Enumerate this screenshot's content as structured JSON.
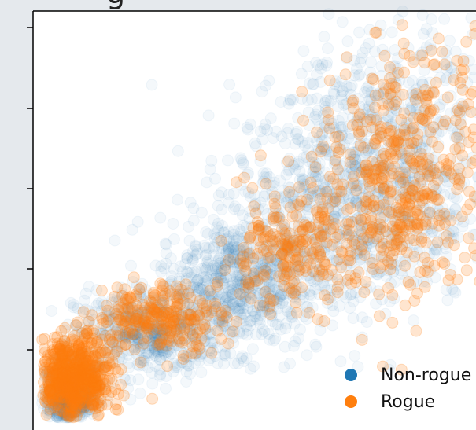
{
  "chart_data": {
    "type": "scatter",
    "title": "",
    "xlabel": "",
    "ylabel": "",
    "grid": false,
    "legend_placement": "bottom-right",
    "y_ticks_count": 5,
    "series": [
      {
        "name": "Non-rogue",
        "color": "#1f77b4",
        "alpha": 0.05,
        "density_clusters": [
          {
            "x": 0.08,
            "y": 0.08,
            "sx": 0.03,
            "sy": 0.04,
            "n": 600
          },
          {
            "x": 0.25,
            "y": 0.23,
            "sx": 0.08,
            "sy": 0.05,
            "n": 500
          },
          {
            "x": 0.45,
            "y": 0.35,
            "sx": 0.09,
            "sy": 0.08,
            "n": 700
          },
          {
            "x": 0.7,
            "y": 0.55,
            "sx": 0.13,
            "sy": 0.13,
            "n": 900
          },
          {
            "x": 0.8,
            "y": 0.75,
            "sx": 0.12,
            "sy": 0.12,
            "n": 350
          }
        ]
      },
      {
        "name": "Rogue",
        "color": "#ff7f0e",
        "alpha": 0.2,
        "density_clusters": [
          {
            "x": 0.09,
            "y": 0.12,
            "sx": 0.04,
            "sy": 0.05,
            "n": 700
          },
          {
            "x": 0.28,
            "y": 0.27,
            "sx": 0.07,
            "sy": 0.04,
            "n": 250
          },
          {
            "x": 0.55,
            "y": 0.42,
            "sx": 0.07,
            "sy": 0.06,
            "n": 200
          },
          {
            "x": 0.8,
            "y": 0.55,
            "sx": 0.1,
            "sy": 0.12,
            "n": 400
          },
          {
            "x": 0.85,
            "y": 0.78,
            "sx": 0.09,
            "sy": 0.09,
            "n": 120
          }
        ]
      }
    ]
  },
  "legend": {
    "items": [
      {
        "label": "Non-rogue",
        "color": "#1f77b4"
      },
      {
        "label": "Rogue",
        "color": "#ff7f0e"
      }
    ]
  }
}
